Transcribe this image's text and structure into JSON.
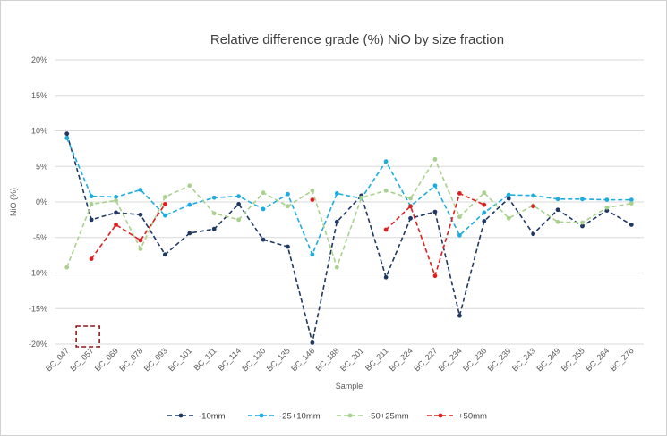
{
  "chart_data": {
    "type": "line",
    "title": "Relative difference grade (%) NiO by size fraction",
    "xlabel": "Sample",
    "ylabel": "NiO (%)",
    "ylim": [
      -20,
      20
    ],
    "yticks": [
      20,
      15,
      10,
      5,
      0,
      -5,
      -10,
      -15,
      -20
    ],
    "ytick_labels": [
      "20%",
      "15%",
      "10%",
      "5%",
      "0%",
      "-5%",
      "-10%",
      "-15%",
      "-20%"
    ],
    "grid": true,
    "legend_position": "bottom",
    "categories": [
      "BC_047",
      "BC_057",
      "BC_069",
      "BC_078",
      "BC_093",
      "BC_101",
      "BC_111",
      "BC_114",
      "BC_120",
      "BC_135",
      "BC_146",
      "BC_188",
      "BC_201",
      "BC_211",
      "BC_224",
      "BC_227",
      "BC_234",
      "BC_236",
      "BC_239",
      "BC_243",
      "BC_249",
      "BC_255",
      "BC_264",
      "BC_276"
    ],
    "series": [
      {
        "name": "-10mm",
        "color": "#1f3864",
        "values": [
          9.6,
          -2.5,
          -1.5,
          -1.8,
          -7.4,
          -4.4,
          -3.8,
          -0.3,
          -5.3,
          -6.3,
          -19.8,
          -2.8,
          0.9,
          -10.6,
          -2.3,
          -1.4,
          -16.0,
          -2.7,
          0.5,
          -4.5,
          -1.1,
          -3.4,
          -1.2,
          -3.2
        ]
      },
      {
        "name": "-25+10mm",
        "color": "#1cacdf",
        "values": [
          9.0,
          0.8,
          0.7,
          1.7,
          -1.9,
          -0.4,
          0.6,
          0.8,
          -1.0,
          1.1,
          -7.4,
          1.2,
          0.5,
          5.7,
          -0.6,
          2.3,
          -4.7,
          -1.5,
          1.0,
          0.9,
          0.4,
          0.4,
          0.3,
          0.3
        ]
      },
      {
        "name": "-50+25mm",
        "color": "#a9d18e",
        "values": [
          -9.2,
          -0.3,
          0.2,
          -6.6,
          0.7,
          2.3,
          -1.6,
          -2.5,
          1.3,
          -0.6,
          1.6,
          -9.2,
          0.6,
          1.6,
          0.5,
          6.0,
          -2.1,
          1.3,
          -2.3,
          -0.5,
          -2.8,
          -2.9,
          -0.8,
          -0.2
        ]
      },
      {
        "name": "+50mm",
        "color": "#e02020",
        "values": [
          null,
          -8.0,
          -3.2,
          -5.4,
          -0.3,
          null,
          null,
          null,
          null,
          null,
          0.3,
          null,
          null,
          -3.9,
          -0.6,
          -10.4,
          1.2,
          -0.4,
          null,
          -0.6,
          null,
          null,
          null,
          null
        ]
      }
    ],
    "annotations": [
      {
        "type": "dashed-box",
        "color": "#8b1a1a",
        "around": {
          "category": "BC_057",
          "value": -20
        }
      }
    ]
  }
}
